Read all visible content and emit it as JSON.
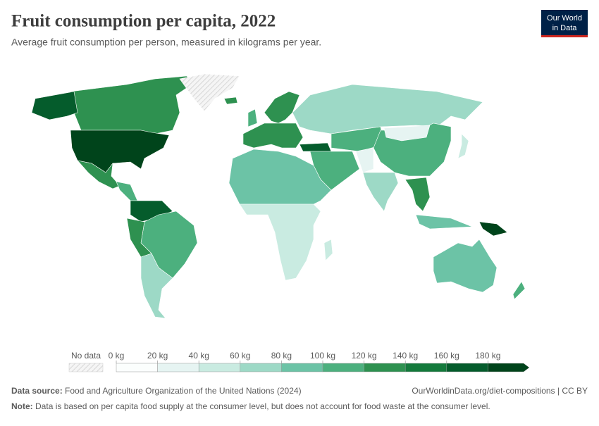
{
  "header": {
    "title": "Fruit consumption per capita, 2022",
    "subtitle": "Average fruit consumption per person, measured in kilograms per year.",
    "logo": [
      "Our World",
      "in Data"
    ]
  },
  "legend": {
    "no_data": "No data",
    "labels": [
      "0 kg",
      "20 kg",
      "40 kg",
      "60 kg",
      "80 kg",
      "100 kg",
      "120 kg",
      "140 kg",
      "160 kg",
      "180 kg"
    ],
    "colors": [
      "#fbfefd",
      "#e6f4f2",
      "#c9ebe1",
      "#9dd9c6",
      "#6cc3a6",
      "#4cb07e",
      "#2e9150",
      "#147a3c",
      "#055c2c",
      "#00441b"
    ]
  },
  "footer": {
    "source_label": "Data source:",
    "source": "Food and Agriculture Organization of the United Nations (2024)",
    "url": "OurWorldinData.org/diet-compositions | CC BY",
    "note_label": "Note:",
    "note": "Data is based on per capita food supply at the consumer level, but does not account for food waste at the consumer level."
  }
}
